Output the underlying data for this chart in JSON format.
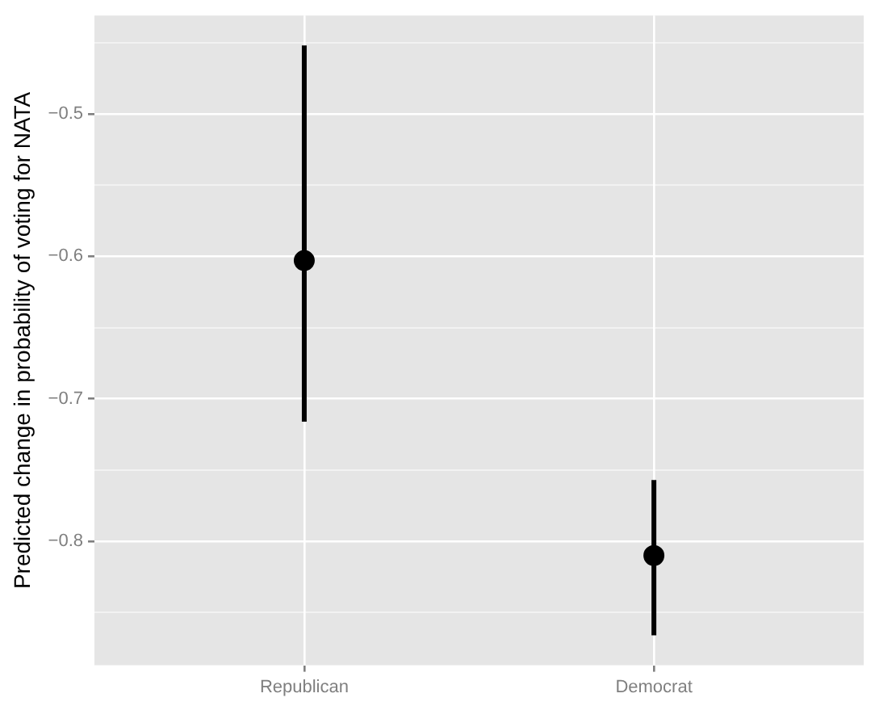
{
  "chart_data": {
    "type": "scatter",
    "ylabel": "Predicted change in probability of voting for NATA",
    "categories": [
      "Republican",
      "Democrat"
    ],
    "values": [
      -0.603,
      -0.81
    ],
    "errors": [
      [
        -0.716,
        -0.452
      ],
      [
        -0.866,
        -0.757
      ]
    ],
    "color": "#000000",
    "marker": "circle",
    "ylim": [
      -0.887,
      -0.431
    ],
    "yticks": [
      {
        "value": -0.85,
        "label": null
      },
      -0.8,
      {
        "value": -0.75,
        "label": null
      },
      -0.7,
      {
        "value": -0.65,
        "label": null
      },
      -0.6,
      {
        "value": -0.55,
        "label": null
      },
      -0.5,
      {
        "value": -0.45,
        "label": null
      }
    ],
    "grid": true
  }
}
